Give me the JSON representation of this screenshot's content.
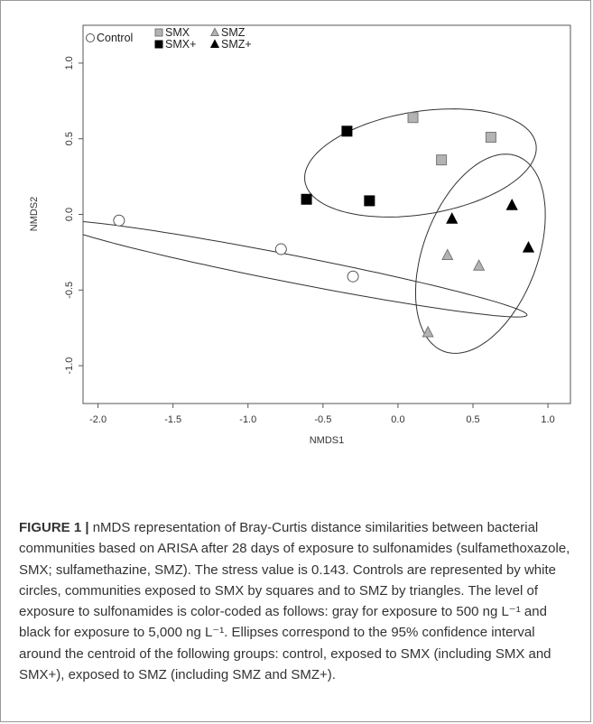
{
  "chart_data": {
    "type": "scatter",
    "title": "",
    "xlabel": "NMDS1",
    "ylabel": "NMDS2",
    "xlim": [
      -2.1,
      1.15
    ],
    "ylim": [
      -1.25,
      1.25
    ],
    "xticks": [
      "-2.0",
      "-1.5",
      "-1.0",
      "-0.5",
      "0.0",
      "0.5",
      "1.0"
    ],
    "yticks": [
      "1.0",
      "0.5",
      "0.0",
      "-0.5",
      "-1.0"
    ],
    "legend_position": "top-left",
    "series": [
      {
        "name": "Control",
        "marker": "circle",
        "fill": "#ffffff",
        "points": [
          [
            -1.86,
            -0.04
          ],
          [
            -0.78,
            -0.23
          ],
          [
            -0.3,
            -0.41
          ]
        ]
      },
      {
        "name": "SMX",
        "marker": "square",
        "fill": "#b3b3b3",
        "points": [
          [
            0.1,
            0.64
          ],
          [
            0.29,
            0.36
          ],
          [
            0.62,
            0.51
          ]
        ]
      },
      {
        "name": "SMX+",
        "marker": "square",
        "fill": "#000000",
        "points": [
          [
            -0.34,
            0.55
          ],
          [
            -0.61,
            0.1
          ],
          [
            -0.19,
            0.09
          ]
        ]
      },
      {
        "name": "SMZ",
        "marker": "triangle",
        "fill": "#b3b3b3",
        "points": [
          [
            0.33,
            -0.27
          ],
          [
            0.54,
            -0.34
          ],
          [
            0.2,
            -0.78
          ]
        ]
      },
      {
        "name": "SMZ+",
        "marker": "triangle",
        "fill": "#000000",
        "points": [
          [
            0.36,
            -0.03
          ],
          [
            0.76,
            0.06
          ],
          [
            0.87,
            -0.22
          ]
        ]
      }
    ],
    "ellipses": [
      {
        "group": "control",
        "center": [
          -0.71,
          -0.36
        ],
        "semi_axes": [
          1.6,
          0.09
        ],
        "angle_deg": -11
      },
      {
        "group": "SMX",
        "center": [
          0.15,
          0.34
        ],
        "semi_axes": [
          0.78,
          0.34
        ],
        "angle_deg": 9
      },
      {
        "group": "SMZ",
        "center": [
          0.55,
          -0.26
        ],
        "semi_axes": [
          0.69,
          0.38
        ],
        "angle_deg": 69
      }
    ]
  },
  "caption": {
    "label": "FIGURE 1 |",
    "text": "nMDS representation of Bray-Curtis distance similarities between bacterial communities based on ARISA after 28 days of exposure to sulfonamides (sulfamethoxazole, SMX; sulfamethazine, SMZ). The stress value is 0.143. Controls are represented by white circles, communities exposed to SMX by squares and to SMZ by triangles. The level of exposure to sulfonamides is color-coded as follows: gray for exposure to 500 ng L⁻¹ and black for exposure to 5,000 ng L⁻¹. Ellipses correspond to the 95% confidence interval around the centroid of the following groups: control, exposed to SMX (including SMX and SMX+), exposed to SMZ (including SMZ and SMZ+)."
  }
}
